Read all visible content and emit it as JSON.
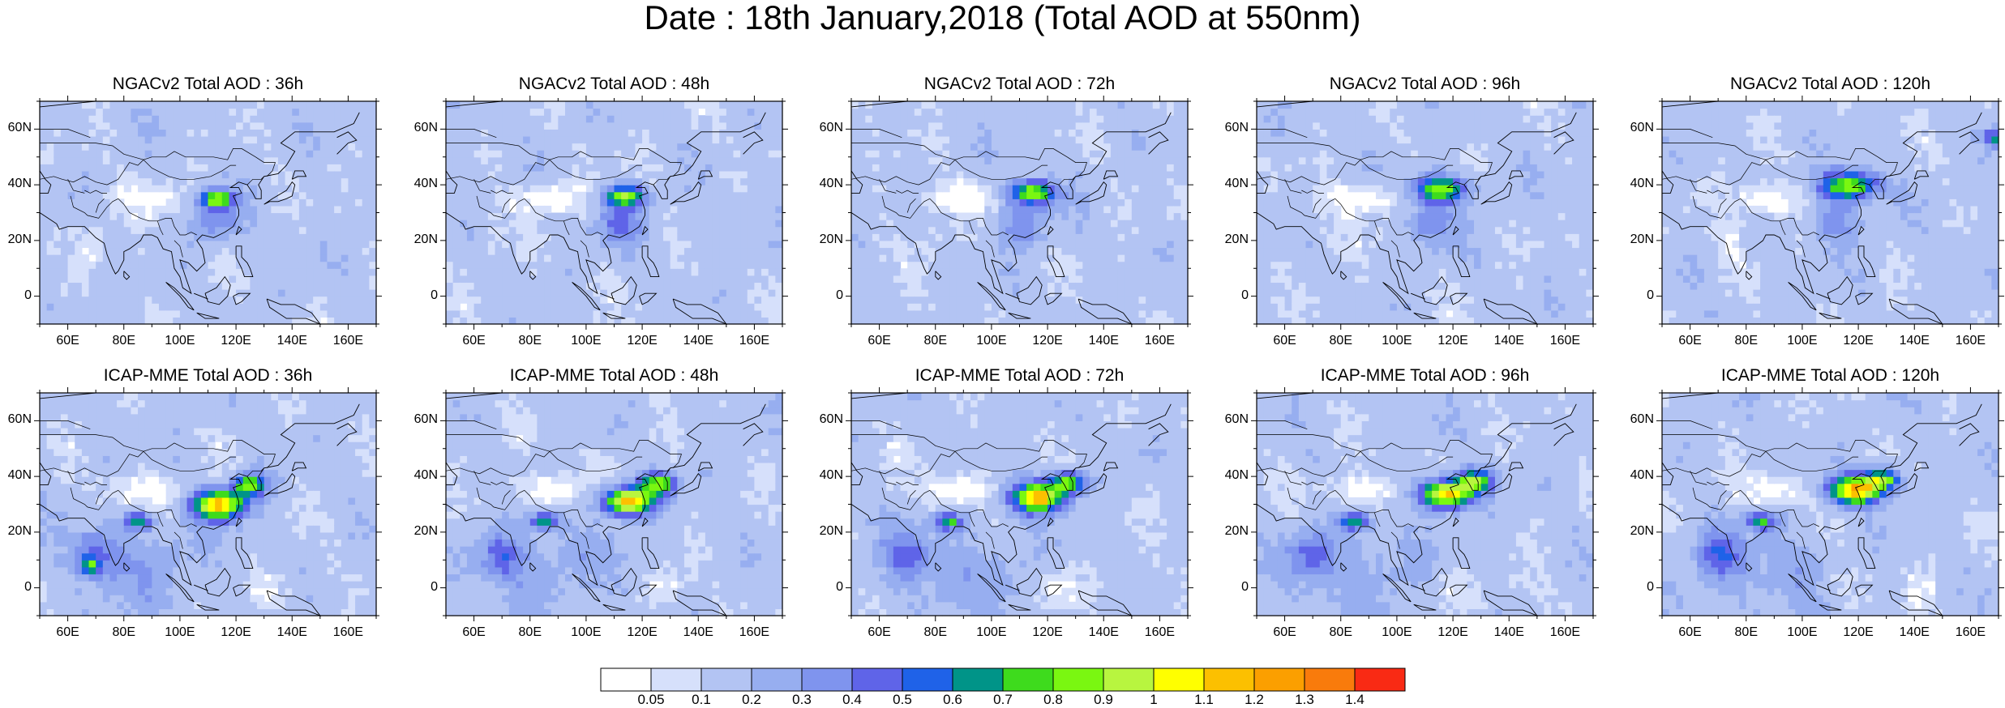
{
  "figure": {
    "title": "Date : 18th January,2018 (Total AOD at 550nm)"
  },
  "axes": {
    "lat_ticks": [
      "60N",
      "40N",
      "20N",
      "0"
    ],
    "lon_ticks": [
      "60E",
      "80E",
      "100E",
      "120E",
      "140E",
      "160E"
    ],
    "lon_range": [
      50,
      170
    ],
    "lat_range": [
      -10,
      70
    ]
  },
  "panels": [
    {
      "title": "NGACv2 Total AOD : 36h",
      "row": 0,
      "col": 0
    },
    {
      "title": "NGACv2 Total AOD : 48h",
      "row": 0,
      "col": 1
    },
    {
      "title": "NGACv2 Total AOD : 72h",
      "row": 0,
      "col": 2
    },
    {
      "title": "NGACv2 Total AOD : 96h",
      "row": 0,
      "col": 3
    },
    {
      "title": "NGACv2 Total AOD : 120h",
      "row": 0,
      "col": 4
    },
    {
      "title": "ICAP-MME Total AOD : 36h",
      "row": 1,
      "col": 0
    },
    {
      "title": "ICAP-MME Total AOD : 48h",
      "row": 1,
      "col": 1
    },
    {
      "title": "ICAP-MME Total AOD : 72h",
      "row": 1,
      "col": 2
    },
    {
      "title": "ICAP-MME Total AOD : 96h",
      "row": 1,
      "col": 3
    },
    {
      "title": "ICAP-MME Total AOD : 120h",
      "row": 1,
      "col": 4
    }
  ],
  "colorbar": {
    "labels": [
      "0.05",
      "0.1",
      "0.2",
      "0.3",
      "0.4",
      "0.5",
      "0.6",
      "0.7",
      "0.8",
      "0.9",
      "1",
      "1.1",
      "1.2",
      "1.3",
      "1.4"
    ],
    "colors": [
      "#ffffff",
      "#d6e0fb",
      "#b3c4f3",
      "#97aef0",
      "#7f94ee",
      "#5f64e8",
      "#1f62e8",
      "#009488",
      "#3edb1d",
      "#7af711",
      "#b8f53f",
      "#ffff00",
      "#fcc000",
      "#fb9f00",
      "#f97b0c",
      "#f92a14"
    ]
  }
}
